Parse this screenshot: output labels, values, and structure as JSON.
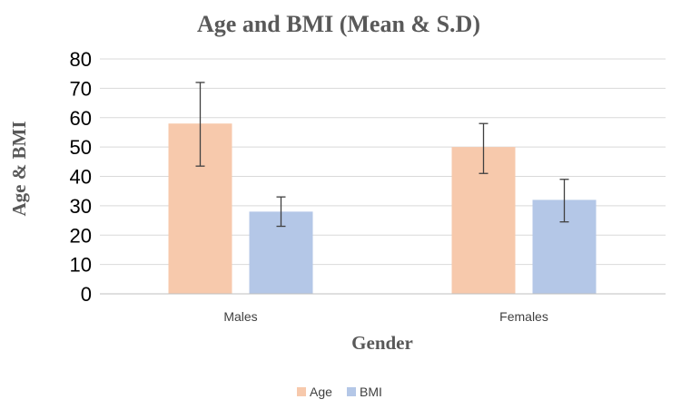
{
  "chart_data": {
    "type": "bar",
    "title": "Age and BMI (Mean & S.D)",
    "xlabel": "Gender",
    "ylabel": "Age & BMI",
    "categories": [
      "Males",
      "Females"
    ],
    "ylim": [
      0,
      80
    ],
    "yticks": [
      0,
      10,
      20,
      30,
      40,
      50,
      60,
      70,
      80
    ],
    "grid": true,
    "legend_position": "bottom",
    "series": [
      {
        "name": "Age",
        "color": "#f7c9ac",
        "values": [
          58,
          50
        ],
        "error_low": [
          43.5,
          41
        ],
        "error_high": [
          72,
          58
        ]
      },
      {
        "name": "BMI",
        "color": "#b4c7e7",
        "values": [
          28,
          32
        ],
        "error_low": [
          23,
          24.5
        ],
        "error_high": [
          33,
          39
        ]
      }
    ]
  }
}
